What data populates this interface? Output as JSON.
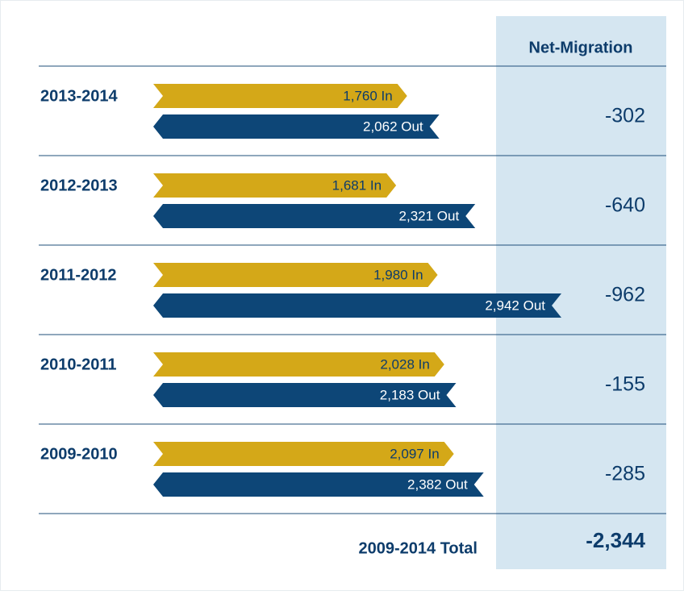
{
  "chart_data": {
    "type": "bar",
    "header": "Net-Migration",
    "categories": [
      "2013-2014",
      "2012-2013",
      "2011-2012",
      "2010-2011",
      "2009-2010"
    ],
    "series": [
      {
        "name": "In",
        "color": "#d4a818",
        "values": [
          1760,
          1681,
          1980,
          2028,
          2097
        ],
        "value_labels": [
          "1,760 In",
          "1,681 In",
          "1,980 In",
          "2,028 In",
          "2,097 In"
        ]
      },
      {
        "name": "Out",
        "color": "#0d4677",
        "values": [
          2062,
          2321,
          2942,
          2183,
          2382
        ],
        "value_labels": [
          "2,062 Out",
          "2,321 Out",
          "2,942 Out",
          "2,183 Out",
          "2,382 Out"
        ]
      }
    ],
    "net_migration": {
      "values": [
        -302,
        -640,
        -962,
        -155,
        -285
      ]
    },
    "total": {
      "label": "2009-2014 Total",
      "value": -2344,
      "value_label": "-2,344"
    }
  }
}
